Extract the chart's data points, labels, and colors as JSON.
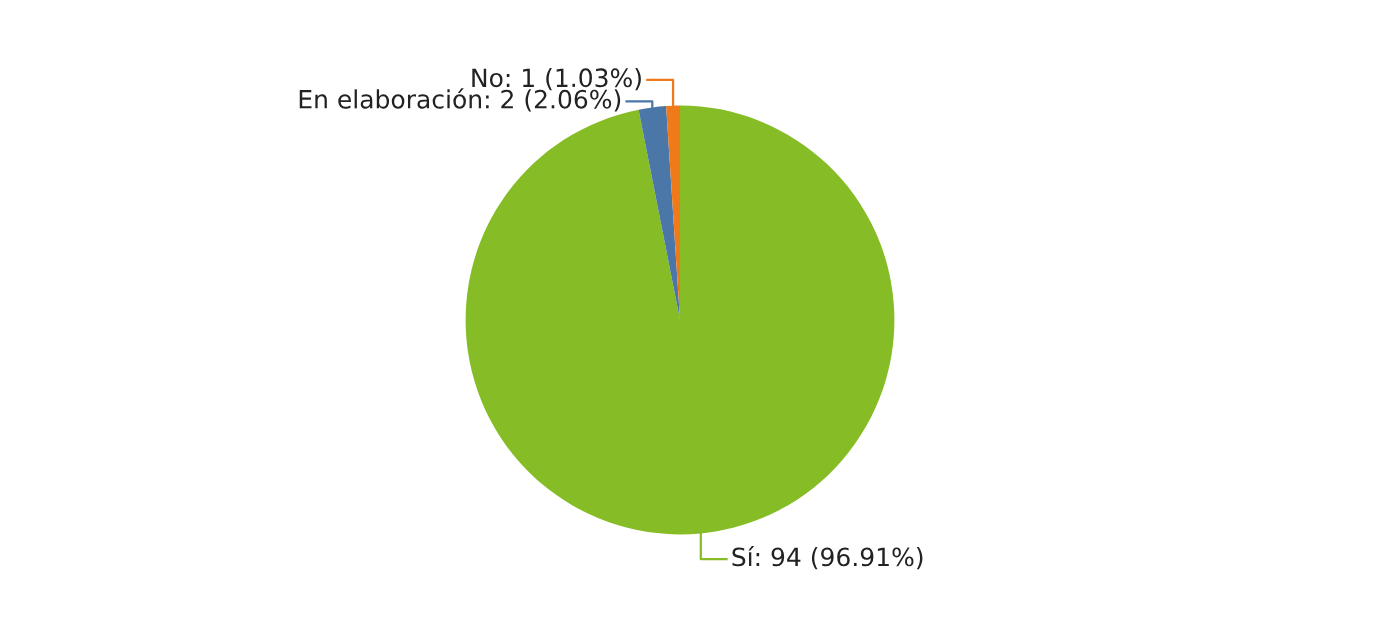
{
  "chart_data": {
    "type": "pie",
    "categories": [
      "Sí",
      "En elaboración",
      "No"
    ],
    "values": [
      94,
      2,
      1
    ],
    "value_labels": [
      "94 (96.91%)",
      "2 (2.06%)",
      "1 (1.03%)"
    ],
    "colors": [
      "#86bc25",
      "#4a76a8",
      "#f07a1a"
    ],
    "legend": false
  }
}
